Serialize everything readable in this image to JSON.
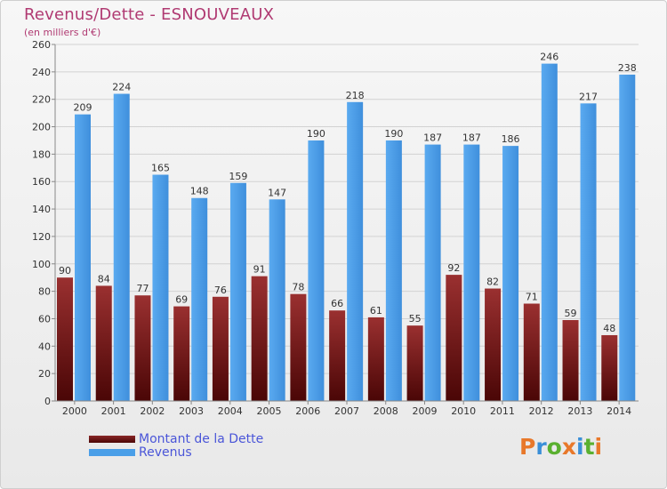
{
  "title": "Revenus/Dette - ESNOUVEAUX",
  "subtitle": "(en milliers d'€)",
  "chart_data": {
    "type": "bar",
    "categories": [
      "2000",
      "2001",
      "2002",
      "2003",
      "2004",
      "2005",
      "2006",
      "2007",
      "2008",
      "2009",
      "2010",
      "2011",
      "2012",
      "2013",
      "2014"
    ],
    "series": [
      {
        "name": "Montant de la Dette",
        "color": "#7a1a1a",
        "values": [
          90,
          84,
          77,
          69,
          76,
          91,
          78,
          66,
          61,
          55,
          92,
          82,
          71,
          59,
          48
        ]
      },
      {
        "name": "Revenus",
        "color": "#4a9fe8",
        "values": [
          209,
          224,
          165,
          148,
          159,
          147,
          190,
          218,
          190,
          187,
          187,
          186,
          246,
          217,
          238
        ]
      }
    ],
    "ylim": [
      0,
      260
    ],
    "yticks": [
      0,
      20,
      40,
      60,
      80,
      100,
      120,
      140,
      160,
      180,
      200,
      220,
      240,
      260
    ],
    "grid": true,
    "legend_position": "bottom-left"
  },
  "legend": {
    "items": [
      {
        "label": "Montant de la Dette",
        "color": "#7a1a1a"
      },
      {
        "label": "Revenus",
        "color": "#4a9fe8"
      }
    ]
  },
  "logo": {
    "text": "Proxiti",
    "icon": "proxiti-logo"
  }
}
